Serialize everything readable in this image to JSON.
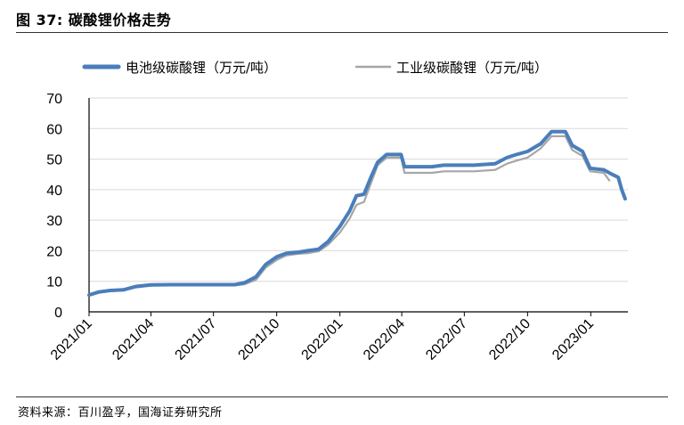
{
  "header": {
    "title": "图 37:  碳酸锂价格走势"
  },
  "footer": {
    "source": "资料来源：百川盈孚，国海证券研究所"
  },
  "chart_data": {
    "type": "line",
    "title": "碳酸锂价格走势",
    "xlabel": "",
    "ylabel": "",
    "ylim": [
      0,
      70
    ],
    "y_ticks": [
      0,
      10,
      20,
      30,
      40,
      50,
      60,
      70
    ],
    "x_ticks": [
      "2021/01",
      "2021/04",
      "2021/07",
      "2021/10",
      "2022/01",
      "2022/04",
      "2022/07",
      "2022/10",
      "2023/01"
    ],
    "grid": true,
    "legend_position": "top",
    "series": [
      {
        "name": "电池级碳酸锂（万元/吨）",
        "color": "#4A7EBB",
        "points": [
          [
            "2021-01-01",
            5.5
          ],
          [
            "2021-01-15",
            6.5
          ],
          [
            "2021-02-01",
            7.0
          ],
          [
            "2021-02-20",
            7.2
          ],
          [
            "2021-03-10",
            8.3
          ],
          [
            "2021-04-01",
            8.8
          ],
          [
            "2021-05-01",
            8.9
          ],
          [
            "2021-06-01",
            8.9
          ],
          [
            "2021-07-01",
            8.9
          ],
          [
            "2021-08-01",
            8.9
          ],
          [
            "2021-08-15",
            9.5
          ],
          [
            "2021-09-01",
            11.5
          ],
          [
            "2021-09-15",
            15.5
          ],
          [
            "2021-10-01",
            18.0
          ],
          [
            "2021-10-15",
            19.2
          ],
          [
            "2021-11-01",
            19.5
          ],
          [
            "2021-11-15",
            20.0
          ],
          [
            "2021-12-01",
            20.5
          ],
          [
            "2021-12-15",
            23.0
          ],
          [
            "2022-01-01",
            28.0
          ],
          [
            "2022-01-15",
            33.0
          ],
          [
            "2022-01-25",
            38.0
          ],
          [
            "2022-02-05",
            38.5
          ],
          [
            "2022-02-15",
            44.0
          ],
          [
            "2022-02-25",
            49.0
          ],
          [
            "2022-03-10",
            51.5
          ],
          [
            "2022-03-31",
            51.5
          ],
          [
            "2022-04-05",
            47.5
          ],
          [
            "2022-05-15",
            47.5
          ],
          [
            "2022-06-01",
            48.0
          ],
          [
            "2022-07-15",
            48.0
          ],
          [
            "2022-08-15",
            48.5
          ],
          [
            "2022-09-01",
            50.5
          ],
          [
            "2022-09-15",
            51.5
          ],
          [
            "2022-10-01",
            52.5
          ],
          [
            "2022-10-20",
            55.0
          ],
          [
            "2022-11-05",
            59.0
          ],
          [
            "2022-11-25",
            59.0
          ],
          [
            "2022-12-05",
            54.5
          ],
          [
            "2022-12-20",
            52.5
          ],
          [
            "2022-12-31",
            47.0
          ],
          [
            "2023-01-20",
            46.5
          ],
          [
            "2023-02-01",
            45.0
          ],
          [
            "2023-02-10",
            44.0
          ],
          [
            "2023-02-15",
            40.0
          ],
          [
            "2023-02-20",
            37.0
          ]
        ]
      },
      {
        "name": "工业级碳酸锂（万元/吨）",
        "color": "#A6A6A6",
        "points": [
          [
            "2021-01-01",
            5.3
          ],
          [
            "2021-01-15",
            6.2
          ],
          [
            "2021-02-01",
            6.8
          ],
          [
            "2021-02-20",
            7.0
          ],
          [
            "2021-03-10",
            8.0
          ],
          [
            "2021-04-01",
            8.6
          ],
          [
            "2021-05-01",
            8.7
          ],
          [
            "2021-06-01",
            8.7
          ],
          [
            "2021-07-01",
            8.7
          ],
          [
            "2021-08-01",
            8.7
          ],
          [
            "2021-08-15",
            9.0
          ],
          [
            "2021-09-01",
            10.5
          ],
          [
            "2021-09-15",
            14.5
          ],
          [
            "2021-10-01",
            17.0
          ],
          [
            "2021-10-15",
            18.5
          ],
          [
            "2021-11-01",
            19.0
          ],
          [
            "2021-11-15",
            19.2
          ],
          [
            "2021-12-01",
            19.8
          ],
          [
            "2021-12-15",
            22.0
          ],
          [
            "2022-01-01",
            26.0
          ],
          [
            "2022-01-15",
            30.5
          ],
          [
            "2022-01-25",
            35.0
          ],
          [
            "2022-02-05",
            36.0
          ],
          [
            "2022-02-15",
            42.0
          ],
          [
            "2022-02-25",
            48.0
          ],
          [
            "2022-03-10",
            50.5
          ],
          [
            "2022-03-31",
            50.5
          ],
          [
            "2022-04-05",
            45.5
          ],
          [
            "2022-05-15",
            45.5
          ],
          [
            "2022-06-01",
            46.0
          ],
          [
            "2022-07-15",
            46.0
          ],
          [
            "2022-08-15",
            46.5
          ],
          [
            "2022-09-01",
            48.5
          ],
          [
            "2022-09-15",
            49.5
          ],
          [
            "2022-10-01",
            50.5
          ],
          [
            "2022-10-20",
            53.5
          ],
          [
            "2022-11-05",
            57.5
          ],
          [
            "2022-11-25",
            57.5
          ],
          [
            "2022-12-05",
            53.0
          ],
          [
            "2022-12-20",
            51.0
          ],
          [
            "2022-12-31",
            46.0
          ],
          [
            "2023-01-20",
            45.5
          ],
          [
            "2023-01-28",
            43.0
          ]
        ]
      }
    ]
  }
}
